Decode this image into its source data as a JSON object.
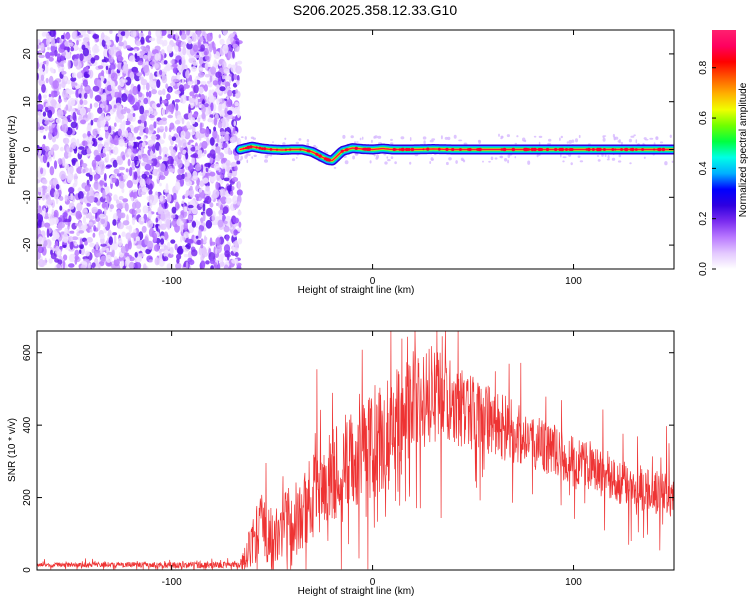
{
  "figure_title": "S206.2025.358.12.33.G10",
  "chart_data": [
    {
      "type": "heatmap",
      "name": "spectrogram",
      "xlabel": "Height of straight line (km)",
      "ylabel": "Frequency (Hz)",
      "xlim": [
        -167,
        150
      ],
      "ylim": [
        -25,
        25
      ],
      "x_ticks": [
        -100,
        0,
        100
      ],
      "y_ticks": [
        -20,
        -10,
        0,
        10,
        20
      ],
      "noise_region_x": [
        -167,
        -66
      ],
      "ridge": {
        "x": [
          -66,
          -60,
          -55,
          -50,
          -45,
          -40,
          -35,
          -30,
          -25,
          -22,
          -20,
          -18,
          -15,
          -10,
          -5,
          0,
          5,
          10,
          20,
          30,
          40,
          60,
          80,
          100,
          120,
          140,
          150
        ],
        "y": [
          0.0,
          0.6,
          0.2,
          0.0,
          -0.1,
          0.0,
          0.0,
          -0.5,
          -1.6,
          -2.2,
          -2.3,
          -1.5,
          -0.3,
          0.3,
          0.1,
          0.0,
          0.2,
          0.0,
          0.0,
          0.1,
          0.0,
          0.0,
          0.0,
          0.0,
          0.0,
          0.0,
          0.0
        ]
      },
      "colorbar": {
        "label": "Normalized spectral amplitude",
        "range": [
          0.0,
          0.95
        ],
        "ticks": [
          0.0,
          0.2,
          0.4,
          0.6,
          0.8
        ],
        "tick_labels": [
          "0.0",
          "0.2",
          "0.4",
          "0.6",
          "0.8"
        ],
        "colors": [
          "#ffffff",
          "#e3c8ff",
          "#b978ff",
          "#7a2cf0",
          "#2e00e0",
          "#0000ff",
          "#00b0ff",
          "#00ffe6",
          "#00ff40",
          "#70ff00",
          "#f0ff00",
          "#ffb000",
          "#ff5a00",
          "#ff0000",
          "#ff0060",
          "#ff2070"
        ]
      }
    },
    {
      "type": "line",
      "name": "snr",
      "xlabel": "Height of straight line (km)",
      "ylabel": "SNR (10 * v/v)",
      "xlim": [
        -167,
        150
      ],
      "ylim": [
        0,
        660
      ],
      "x_ticks": [
        -100,
        0,
        100
      ],
      "y_ticks": [
        0,
        200,
        400,
        600
      ],
      "line_color": "#ee3333",
      "envelope": {
        "x": [
          -167,
          -130,
          -90,
          -66,
          -63,
          -60,
          -55,
          -50,
          -45,
          -40,
          -35,
          -30,
          -25,
          -20,
          -15,
          -10,
          -5,
          0,
          5,
          10,
          15,
          20,
          25,
          30,
          35,
          40,
          45,
          50,
          60,
          70,
          80,
          90,
          100,
          110,
          120,
          130,
          140,
          150
        ],
        "y": [
          15,
          15,
          14,
          16,
          40,
          80,
          140,
          90,
          120,
          150,
          170,
          220,
          250,
          280,
          300,
          320,
          330,
          360,
          380,
          400,
          430,
          470,
          490,
          500,
          490,
          470,
          460,
          440,
          420,
          390,
          360,
          340,
          310,
          290,
          260,
          240,
          220,
          210
        ]
      },
      "spike_amplitude": {
        "x": [
          -167,
          -66,
          -60,
          -40,
          0,
          20,
          40,
          80,
          150
        ],
        "y": [
          10,
          14,
          110,
          170,
          230,
          230,
          180,
          120,
          90
        ]
      }
    }
  ]
}
